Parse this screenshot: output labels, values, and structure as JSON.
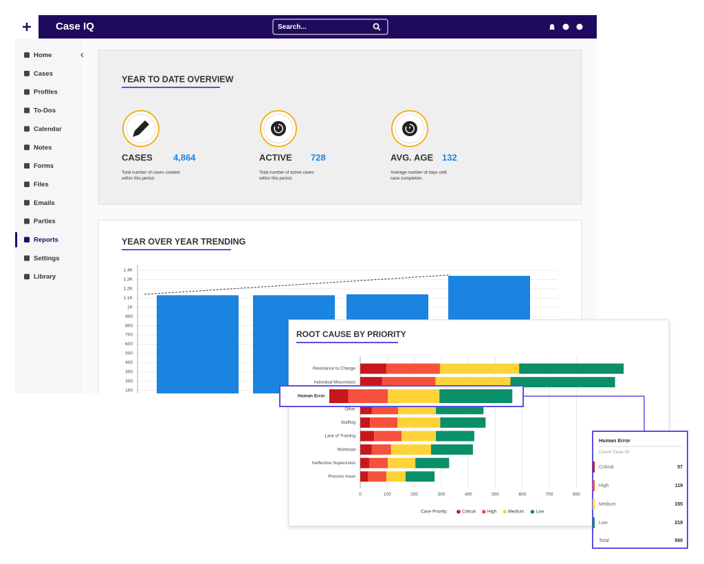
{
  "app": {
    "logo": "Case IQ",
    "search": "Search...",
    "nav": [
      {
        "label": "Home",
        "active": false
      },
      {
        "label": "Cases",
        "active": false
      },
      {
        "label": "Profiles",
        "active": false
      },
      {
        "label": "To-Dos",
        "active": false
      },
      {
        "label": "Calendar",
        "active": false
      },
      {
        "label": "Notes",
        "active": false
      },
      {
        "label": "Forms",
        "active": false
      },
      {
        "label": "Files",
        "active": false
      },
      {
        "label": "Emails",
        "active": false
      },
      {
        "label": "Parties",
        "active": false
      },
      {
        "label": "Reports",
        "active": true
      },
      {
        "label": "Settings",
        "active": false
      },
      {
        "label": "Library",
        "active": false
      }
    ]
  },
  "overview": {
    "title": "YEAR TO DATE OVERVIEW",
    "stats": [
      {
        "label": "CASES",
        "value": "4,864",
        "description": [
          "Total number of cases created",
          "within this period."
        ]
      },
      {
        "label": "ACTIVE",
        "value": "728",
        "description": [
          "Total number of active cases",
          " within this period."
        ]
      },
      {
        "label": "AVG. AGE",
        "value": "132",
        "description": [
          "Average number of days until",
          "case completion."
        ]
      }
    ]
  },
  "chart_data": [
    {
      "type": "bar",
      "title": "YEAR OVER YEAR TRENDING",
      "categories": [
        null,
        null,
        null,
        null
      ],
      "values": [
        1130,
        1130,
        1140,
        1340
      ],
      "color": "#1a84e0",
      "trend": [
        1140,
        1350
      ],
      "ylim": [
        0,
        1400
      ],
      "yticks": [
        100,
        200,
        300,
        400,
        500,
        600,
        700,
        800,
        900,
        {
          "value": 1000,
          "label": "1K"
        },
        {
          "value": 1100,
          "label": "1.1K"
        },
        {
          "value": 1200,
          "label": "1.2K"
        },
        {
          "value": 1300,
          "label": "1.3K"
        },
        {
          "value": 1400,
          "label": "1.4K"
        }
      ],
      "grid": true
    },
    {
      "type": "stacked-bar",
      "orientation": "horizontal",
      "title": "ROOT CAUSE BY PRIORITY",
      "legend_title": "Case Priority:",
      "categories": [
        "Resistance to Change",
        "Individual Misconduct",
        "Human Error",
        "Other",
        "Staffing",
        "Lack of Training",
        "Workload",
        "Ineffective Supervision",
        "Process Issue"
      ],
      "highlighted_category": 2,
      "series": [
        {
          "name": "Critical",
          "color": "#c8161d",
          "values": [
            97,
            81,
            57,
            43,
            36,
            51,
            43,
            33,
            28
          ]
        },
        {
          "name": "High",
          "color": "#f5513c",
          "values": [
            198,
            198,
            119,
            97,
            102,
            102,
            71,
            69,
            69
          ]
        },
        {
          "name": "Medium",
          "color": "#fdd338",
          "values": [
            293,
            277,
            155,
            140,
            158,
            127,
            148,
            102,
            71
          ]
        },
        {
          "name": "Low",
          "color": "#0b8f68",
          "values": [
            387,
            387,
            219,
            176,
            168,
            142,
            155,
            125,
            107
          ]
        }
      ],
      "xlim": [
        0,
        1000
      ],
      "xticks": [
        0,
        100,
        200,
        300,
        400,
        500,
        600,
        700,
        800
      ],
      "grid": true
    }
  ],
  "tooltip": {
    "title": "Human Error",
    "subtitle": "Count Case ID",
    "rows": [
      {
        "label": "Critical",
        "value": 57
      },
      {
        "label": "High",
        "value": 119
      },
      {
        "label": "Medium",
        "value": 155
      },
      {
        "label": "Low",
        "value": 219
      }
    ],
    "total_label": "Total",
    "total": 550
  }
}
